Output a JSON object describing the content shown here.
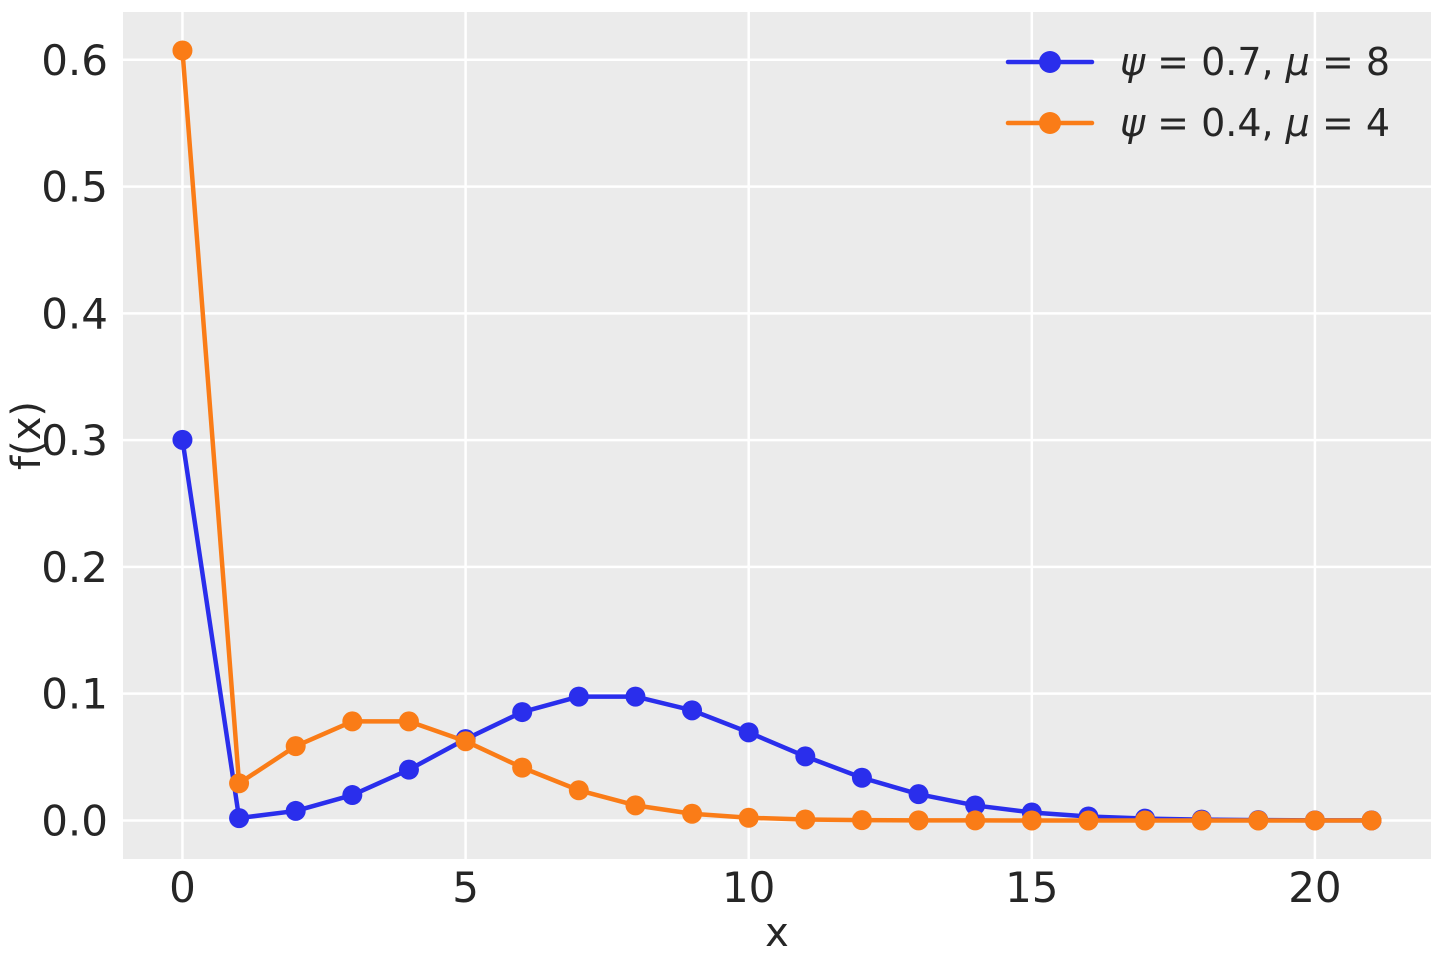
{
  "figure": {
    "background": "#ffffff",
    "plot_background": "#ebebeb",
    "grid_color": "#ffffff",
    "text_color": "#262626"
  },
  "chart_data": {
    "type": "line",
    "title": "",
    "xlabel": "x",
    "ylabel": "f(x)",
    "xlim": [
      -1.05,
      22.05
    ],
    "ylim": [
      -0.0304,
      0.6377
    ],
    "x_ticks": [
      0,
      5,
      10,
      15,
      20
    ],
    "y_ticks": [
      0.0,
      0.1,
      0.2,
      0.3,
      0.4,
      0.5,
      0.6
    ],
    "grid": true,
    "legend_position": "upper right",
    "marker": "o",
    "x": [
      0,
      1,
      2,
      3,
      4,
      5,
      6,
      7,
      8,
      9,
      10,
      11,
      12,
      13,
      14,
      15,
      16,
      17,
      18,
      19,
      20,
      21
    ],
    "series": [
      {
        "name": "zip-psi-0.7-mu-8",
        "label": "ψ = 0.7, μ = 8",
        "color": "#2a2eec",
        "values": [
          0.300235,
          0.001879,
          0.007514,
          0.020038,
          0.040077,
          0.064123,
          0.085497,
          0.097711,
          0.097711,
          0.086854,
          0.069483,
          0.050533,
          0.033689,
          0.020732,
          0.011847,
          0.006318,
          0.003159,
          0.001487,
          0.000661,
          0.000278,
          0.000111,
          4.2e-05
        ]
      },
      {
        "name": "zip-psi-0.4-mu-4",
        "label": "ψ = 0.4, μ = 4",
        "color": "#fa7c17",
        "values": [
          0.607326,
          0.029305,
          0.05861,
          0.078147,
          0.078147,
          0.062517,
          0.041678,
          0.023816,
          0.011908,
          0.005292,
          0.002117,
          0.00077,
          0.000257,
          7.9e-05,
          2.3e-05,
          6e-06,
          2e-06,
          0.0,
          0.0,
          0.0,
          0.0,
          0.0
        ]
      }
    ]
  }
}
